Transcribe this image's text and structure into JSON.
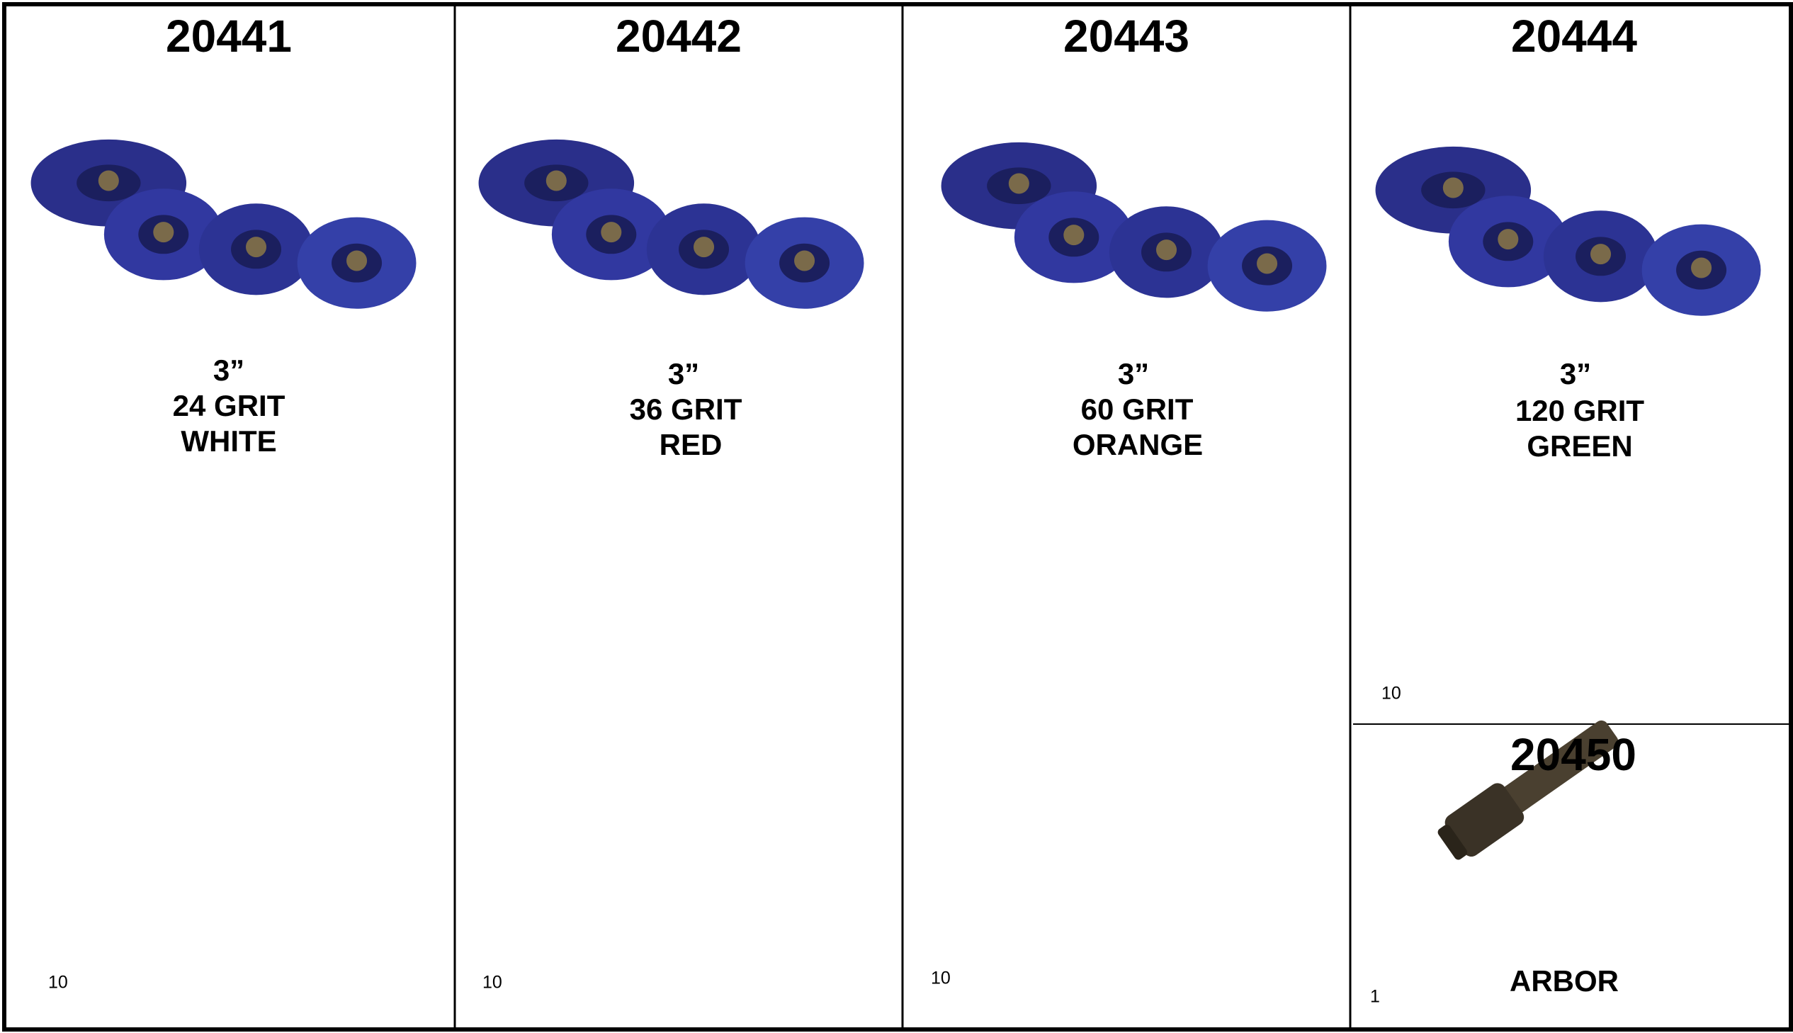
{
  "products": [
    {
      "sku": "20441",
      "size": "3”",
      "grit": "24 GRIT",
      "color": "WHITE",
      "qty": 10
    },
    {
      "sku": "20442",
      "size": "3”",
      "grit": "36 GRIT",
      "color": "RED",
      "qty": 10
    },
    {
      "sku": "20443",
      "size": "3”",
      "grit": "60 GRIT",
      "color": "ORANGE",
      "qty": 10
    },
    {
      "sku": "20444",
      "size": "3”",
      "grit": "120 GRIT",
      "color": "GREEN",
      "qty": 10
    }
  ],
  "accessory": {
    "sku": "20450",
    "name": "ARBOR",
    "qty": 1
  }
}
